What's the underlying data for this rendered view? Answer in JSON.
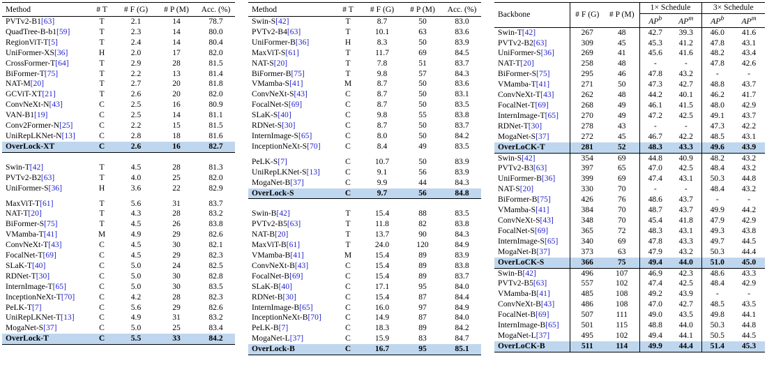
{
  "table1": {
    "headers": [
      "Method",
      "# T",
      "# F (G)",
      "# P (M)",
      "Acc. (%)"
    ],
    "groups": [
      [
        {
          "name": "PVTv2-B1",
          "ref": "63",
          "t": "T",
          "f": "2.1",
          "p": "14",
          "acc": "78.7"
        },
        {
          "name": "QuadTree-B-b1",
          "ref": "59",
          "t": "T",
          "f": "2.3",
          "p": "14",
          "acc": "80.0"
        },
        {
          "name": "RegionViT-T",
          "ref": "5",
          "t": "T",
          "f": "2.4",
          "p": "14",
          "acc": "80.4"
        },
        {
          "name": "UniFormer-XS",
          "ref": "36",
          "t": "H",
          "f": "2.0",
          "p": "17",
          "acc": "82.0"
        },
        {
          "name": "CrossFormer-T",
          "ref": "64",
          "t": "T",
          "f": "2.9",
          "p": "28",
          "acc": "81.5"
        },
        {
          "name": "BiFormer-T",
          "ref": "75",
          "t": "T",
          "f": "2.2",
          "p": "13",
          "acc": "81.4"
        },
        {
          "name": "NAT-M",
          "ref": "20",
          "t": "T",
          "f": "2.7",
          "p": "20",
          "acc": "81.8"
        },
        {
          "name": "GCViT-XT",
          "ref": "21",
          "t": "T",
          "f": "2.6",
          "p": "20",
          "acc": "82.0"
        },
        {
          "name": "ConvNeXt-N",
          "ref": "43",
          "t": "C",
          "f": "2.5",
          "p": "16",
          "acc": "80.9"
        },
        {
          "name": "VAN-B1",
          "ref": "19",
          "t": "C",
          "f": "2.5",
          "p": "14",
          "acc": "81.1"
        },
        {
          "name": "Conv2Former-N",
          "ref": "25",
          "t": "C",
          "f": "2.2",
          "p": "15",
          "acc": "81.5"
        },
        {
          "name": "UniRepLKNet-N",
          "ref": "13",
          "t": "C",
          "f": "2.8",
          "p": "18",
          "acc": "81.6"
        },
        {
          "name": "OverLock-XT",
          "ref": "",
          "t": "C",
          "f": "2.6",
          "p": "16",
          "acc": "82.7",
          "hl": true
        }
      ],
      [
        {
          "name": "Swin-T",
          "ref": "42",
          "t": "T",
          "f": "4.5",
          "p": "28",
          "acc": "81.3"
        },
        {
          "name": "PVTv2-B2",
          "ref": "63",
          "t": "T",
          "f": "4.0",
          "p": "25",
          "acc": "82.0"
        },
        {
          "name": "UniFormer-S",
          "ref": "36",
          "t": "H",
          "f": "3.6",
          "p": "22",
          "acc": "82.9",
          "gapAfter": true
        },
        {
          "name": "MaxViT-T",
          "ref": "61",
          "t": "T",
          "f": "5.6",
          "p": "31",
          "acc": "83.7"
        },
        {
          "name": "NAT-T",
          "ref": "20",
          "t": "T",
          "f": "4.3",
          "p": "28",
          "acc": "83.2"
        },
        {
          "name": "BiFormer-S",
          "ref": "75",
          "t": "T",
          "f": "4.5",
          "p": "26",
          "acc": "83.8"
        },
        {
          "name": "VMamba-T",
          "ref": "41",
          "t": "M",
          "f": "4.9",
          "p": "29",
          "acc": "82.6"
        },
        {
          "name": "ConvNeXt-T",
          "ref": "43",
          "t": "C",
          "f": "4.5",
          "p": "30",
          "acc": "82.1"
        },
        {
          "name": "FocalNet-T",
          "ref": "69",
          "t": "C",
          "f": "4.5",
          "p": "29",
          "acc": "82.3"
        },
        {
          "name": "SLaK-T",
          "ref": "40",
          "t": "C",
          "f": "5.0",
          "p": "24",
          "acc": "82.5"
        },
        {
          "name": "RDNet-T",
          "ref": "30",
          "t": "C",
          "f": "5.0",
          "p": "30",
          "acc": "82.8"
        },
        {
          "name": "InternImage-T",
          "ref": "65",
          "t": "C",
          "f": "5.0",
          "p": "30",
          "acc": "83.5"
        },
        {
          "name": "InceptionNeXt-T",
          "ref": "70",
          "t": "C",
          "f": "4.2",
          "p": "28",
          "acc": "82.3"
        },
        {
          "name": "PeLK-T",
          "ref": "7",
          "t": "C",
          "f": "5.6",
          "p": "29",
          "acc": "82.6"
        },
        {
          "name": "UniRepLKNet-T",
          "ref": "13",
          "t": "C",
          "f": "4.9",
          "p": "31",
          "acc": "83.2"
        },
        {
          "name": "MogaNet-S",
          "ref": "37",
          "t": "C",
          "f": "5.0",
          "p": "25",
          "acc": "83.4"
        },
        {
          "name": "OverLock-T",
          "ref": "",
          "t": "C",
          "f": "5.5",
          "p": "33",
          "acc": "84.2",
          "hl": true
        }
      ]
    ]
  },
  "table2": {
    "headers": [
      "Method",
      "# T",
      "# F (G)",
      "# P (M)",
      "Acc. (%)"
    ],
    "groups": [
      [
        {
          "name": "Swin-S",
          "ref": "42",
          "t": "T",
          "f": "8.7",
          "p": "50",
          "acc": "83.0"
        },
        {
          "name": "PVTv2-B4",
          "ref": "63",
          "t": "T",
          "f": "10.1",
          "p": "63",
          "acc": "83.6"
        },
        {
          "name": "UniFormer-B",
          "ref": "36",
          "t": "H",
          "f": "8.3",
          "p": "50",
          "acc": "83.9"
        },
        {
          "name": "MaxViT-S",
          "ref": "61",
          "t": "T",
          "f": "11.7",
          "p": "69",
          "acc": "84.5"
        },
        {
          "name": "NAT-S",
          "ref": "20",
          "t": "T",
          "f": "7.8",
          "p": "51",
          "acc": "83.7"
        },
        {
          "name": "BiFormer-B",
          "ref": "75",
          "t": "T",
          "f": "9.8",
          "p": "57",
          "acc": "84.3"
        },
        {
          "name": "VMamba-S",
          "ref": "41",
          "t": "M",
          "f": "8.7",
          "p": "50",
          "acc": "83.6"
        },
        {
          "name": "ConvNeXt-S",
          "ref": "43",
          "t": "C",
          "f": "8.7",
          "p": "50",
          "acc": "83.1"
        },
        {
          "name": "FocalNet-S",
          "ref": "69",
          "t": "C",
          "f": "8.7",
          "p": "50",
          "acc": "83.5"
        },
        {
          "name": "SLaK-S",
          "ref": "40",
          "t": "C",
          "f": "9.8",
          "p": "55",
          "acc": "83.8"
        },
        {
          "name": "RDNet-S",
          "ref": "30",
          "t": "C",
          "f": "8.7",
          "p": "50",
          "acc": "83.7"
        },
        {
          "name": "InternImage-S",
          "ref": "65",
          "t": "C",
          "f": "8.0",
          "p": "50",
          "acc": "84.2"
        },
        {
          "name": "InceptionNeXt-S",
          "ref": "70",
          "t": "C",
          "f": "8.4",
          "p": "49",
          "acc": "83.5",
          "gapAfter": true
        },
        {
          "name": "PeLK-S",
          "ref": "7",
          "t": "C",
          "f": "10.7",
          "p": "50",
          "acc": "83.9"
        },
        {
          "name": "UniRepLKNet-S",
          "ref": "13",
          "t": "C",
          "f": "9.1",
          "p": "56",
          "acc": "83.9"
        },
        {
          "name": "MogaNet-B",
          "ref": "37",
          "t": "C",
          "f": "9.9",
          "p": "44",
          "acc": "84.3"
        },
        {
          "name": "OverLock-S",
          "ref": "",
          "t": "C",
          "f": "9.7",
          "p": "56",
          "acc": "84.8",
          "hl": true
        }
      ],
      [
        {
          "name": "Swin-B",
          "ref": "42",
          "t": "T",
          "f": "15.4",
          "p": "88",
          "acc": "83.5"
        },
        {
          "name": "PVTv2-B5",
          "ref": "63",
          "t": "T",
          "f": "11.8",
          "p": "82",
          "acc": "83.8"
        },
        {
          "name": "NAT-B",
          "ref": "20",
          "t": "T",
          "f": "13.7",
          "p": "90",
          "acc": "84.3"
        },
        {
          "name": "MaxViT-B",
          "ref": "61",
          "t": "T",
          "f": "24.0",
          "p": "120",
          "acc": "84.9"
        },
        {
          "name": "VMamba-B",
          "ref": "41",
          "t": "M",
          "f": "15.4",
          "p": "89",
          "acc": "83.9"
        },
        {
          "name": "ConvNeXt-B",
          "ref": "43",
          "t": "C",
          "f": "15.4",
          "p": "89",
          "acc": "83.8"
        },
        {
          "name": "FocalNet-B",
          "ref": "69",
          "t": "C",
          "f": "15.4",
          "p": "89",
          "acc": "83.7"
        },
        {
          "name": "SLaK-B",
          "ref": "40",
          "t": "C",
          "f": "17.1",
          "p": "95",
          "acc": "84.0"
        },
        {
          "name": "RDNet-B",
          "ref": "30",
          "t": "C",
          "f": "15.4",
          "p": "87",
          "acc": "84.4"
        },
        {
          "name": "InternImage-B",
          "ref": "65",
          "t": "C",
          "f": "16.0",
          "p": "97",
          "acc": "84.9"
        },
        {
          "name": "InceptionNeXt-B",
          "ref": "70",
          "t": "C",
          "f": "14.9",
          "p": "87",
          "acc": "84.0"
        },
        {
          "name": "PeLK-B",
          "ref": "7",
          "t": "C",
          "f": "18.3",
          "p": "89",
          "acc": "84.2"
        },
        {
          "name": "MogaNet-L",
          "ref": "37",
          "t": "C",
          "f": "15.9",
          "p": "83",
          "acc": "84.7"
        },
        {
          "name": "OverLock-B",
          "ref": "",
          "t": "C",
          "f": "16.7",
          "p": "95",
          "acc": "85.1",
          "hl": true
        }
      ]
    ]
  },
  "table3": {
    "header": {
      "backbone": "Backbone",
      "flops": "# F (G)",
      "params": "# P (M)",
      "sched1": "1× Schedule",
      "sched3": "3× Schedule",
      "apb": "AP",
      "apb_sup": "b",
      "apm": "AP",
      "apm_sup": "m"
    },
    "groups": [
      [
        {
          "name": "Swin-T",
          "ref": "42",
          "f": "267",
          "p": "48",
          "a1": "42.7",
          "m1": "39.3",
          "a3": "46.0",
          "m3": "41.6"
        },
        {
          "name": "PVTv2-B2",
          "ref": "63",
          "f": "309",
          "p": "45",
          "a1": "45.3",
          "m1": "41.2",
          "a3": "47.8",
          "m3": "43.1"
        },
        {
          "name": "UniFormer-S",
          "ref": "36",
          "f": "269",
          "p": "41",
          "a1": "45.6",
          "m1": "41.6",
          "a3": "48.2",
          "m3": "43.4"
        },
        {
          "name": "NAT-T",
          "ref": "20",
          "f": "258",
          "p": "48",
          "a1": "-",
          "m1": "-",
          "a3": "47.8",
          "m3": "42.6"
        },
        {
          "name": "BiFormer-S",
          "ref": "75",
          "f": "295",
          "p": "46",
          "a1": "47.8",
          "m1": "43.2",
          "a3": "-",
          "m3": "-"
        },
        {
          "name": "VMamba-T",
          "ref": "41",
          "f": "271",
          "p": "50",
          "a1": "47.3",
          "m1": "42.7",
          "a3": "48.8",
          "m3": "43.7"
        },
        {
          "name": "ConvNeXt-T",
          "ref": "43",
          "f": "262",
          "p": "48",
          "a1": "44.2",
          "m1": "40.1",
          "a3": "46.2",
          "m3": "41.7"
        },
        {
          "name": "FocalNet-T",
          "ref": "69",
          "f": "268",
          "p": "49",
          "a1": "46.1",
          "m1": "41.5",
          "a3": "48.0",
          "m3": "42.9"
        },
        {
          "name": "InternImage-T",
          "ref": "65",
          "f": "270",
          "p": "49",
          "a1": "47.2",
          "m1": "42.5",
          "a3": "49.1",
          "m3": "43.7"
        },
        {
          "name": "RDNet-T",
          "ref": "30",
          "f": "278",
          "p": "43",
          "a1": "-",
          "m1": "-",
          "a3": "47.3",
          "m3": "42.2"
        },
        {
          "name": "MogaNet-S",
          "ref": "37",
          "f": "272",
          "p": "45",
          "a1": "46.7",
          "m1": "42.2",
          "a3": "48.5",
          "m3": "43.1"
        },
        {
          "name": "OverLoCK-T",
          "ref": "",
          "f": "281",
          "p": "52",
          "a1": "48.3",
          "m1": "43.3",
          "a3": "49.6",
          "m3": "43.9",
          "hl": true
        }
      ],
      [
        {
          "name": "Swin-S",
          "ref": "42",
          "f": "354",
          "p": "69",
          "a1": "44.8",
          "m1": "40.9",
          "a3": "48.2",
          "m3": "43.2"
        },
        {
          "name": "PVTv2-B3",
          "ref": "63",
          "f": "397",
          "p": "65",
          "a1": "47.0",
          "m1": "42.5",
          "a3": "48.4",
          "m3": "43.2"
        },
        {
          "name": "UniFormer-B",
          "ref": "36",
          "f": "399",
          "p": "69",
          "a1": "47.4",
          "m1": "43.1",
          "a3": "50.3",
          "m3": "44.8"
        },
        {
          "name": "NAT-S",
          "ref": "20",
          "f": "330",
          "p": "70",
          "a1": "-",
          "m1": "-",
          "a3": "48.4",
          "m3": "43.2"
        },
        {
          "name": "BiFormer-B",
          "ref": "75",
          "f": "426",
          "p": "76",
          "a1": "48.6",
          "m1": "43.7",
          "a3": "-",
          "m3": "-"
        },
        {
          "name": "VMamba-S",
          "ref": "41",
          "f": "384",
          "p": "70",
          "a1": "48.7",
          "m1": "43.7",
          "a3": "49.9",
          "m3": "44.2"
        },
        {
          "name": "ConvNeXt-S",
          "ref": "43",
          "f": "348",
          "p": "70",
          "a1": "45.4",
          "m1": "41.8",
          "a3": "47.9",
          "m3": "42.9"
        },
        {
          "name": "FocalNet-S",
          "ref": "69",
          "f": "365",
          "p": "72",
          "a1": "48.3",
          "m1": "43.1",
          "a3": "49.3",
          "m3": "43.8"
        },
        {
          "name": "InternImage-S",
          "ref": "65",
          "f": "340",
          "p": "69",
          "a1": "47.8",
          "m1": "43.3",
          "a3": "49.7",
          "m3": "44.5"
        },
        {
          "name": "MogaNet-B",
          "ref": "37",
          "f": "373",
          "p": "63",
          "a1": "47.9",
          "m1": "43.2",
          "a3": "50.3",
          "m3": "44.4"
        },
        {
          "name": "OverLoCK-S",
          "ref": "",
          "f": "366",
          "p": "75",
          "a1": "49.4",
          "m1": "44.0",
          "a3": "51.0",
          "m3": "45.0",
          "hl": true
        }
      ],
      [
        {
          "name": "Swin-B",
          "ref": "42",
          "f": "496",
          "p": "107",
          "a1": "46.9",
          "m1": "42.3",
          "a3": "48.6",
          "m3": "43.3"
        },
        {
          "name": "PVTv2-B5",
          "ref": "63",
          "f": "557",
          "p": "102",
          "a1": "47.4",
          "m1": "42.5",
          "a3": "48.4",
          "m3": "42.9"
        },
        {
          "name": "VMamba-B",
          "ref": "41",
          "f": "485",
          "p": "108",
          "a1": "49.2",
          "m1": "43.9",
          "a3": "-",
          "m3": "-"
        },
        {
          "name": "ConvNeXt-B",
          "ref": "43",
          "f": "486",
          "p": "108",
          "a1": "47.0",
          "m1": "42.7",
          "a3": "48.5",
          "m3": "43.5"
        },
        {
          "name": "FocalNet-B",
          "ref": "69",
          "f": "507",
          "p": "111",
          "a1": "49.0",
          "m1": "43.5",
          "a3": "49.8",
          "m3": "44.1"
        },
        {
          "name": "InternImage-B",
          "ref": "65",
          "f": "501",
          "p": "115",
          "a1": "48.8",
          "m1": "44.0",
          "a3": "50.3",
          "m3": "44.8"
        },
        {
          "name": "MogaNet-L",
          "ref": "37",
          "f": "495",
          "p": "102",
          "a1": "49.4",
          "m1": "44.1",
          "a3": "50.5",
          "m3": "44.5"
        },
        {
          "name": "OverLoCK-B",
          "ref": "",
          "f": "511",
          "p": "114",
          "a1": "49.9",
          "m1": "44.4",
          "a3": "51.4",
          "m3": "45.3",
          "hl": true
        }
      ]
    ]
  }
}
